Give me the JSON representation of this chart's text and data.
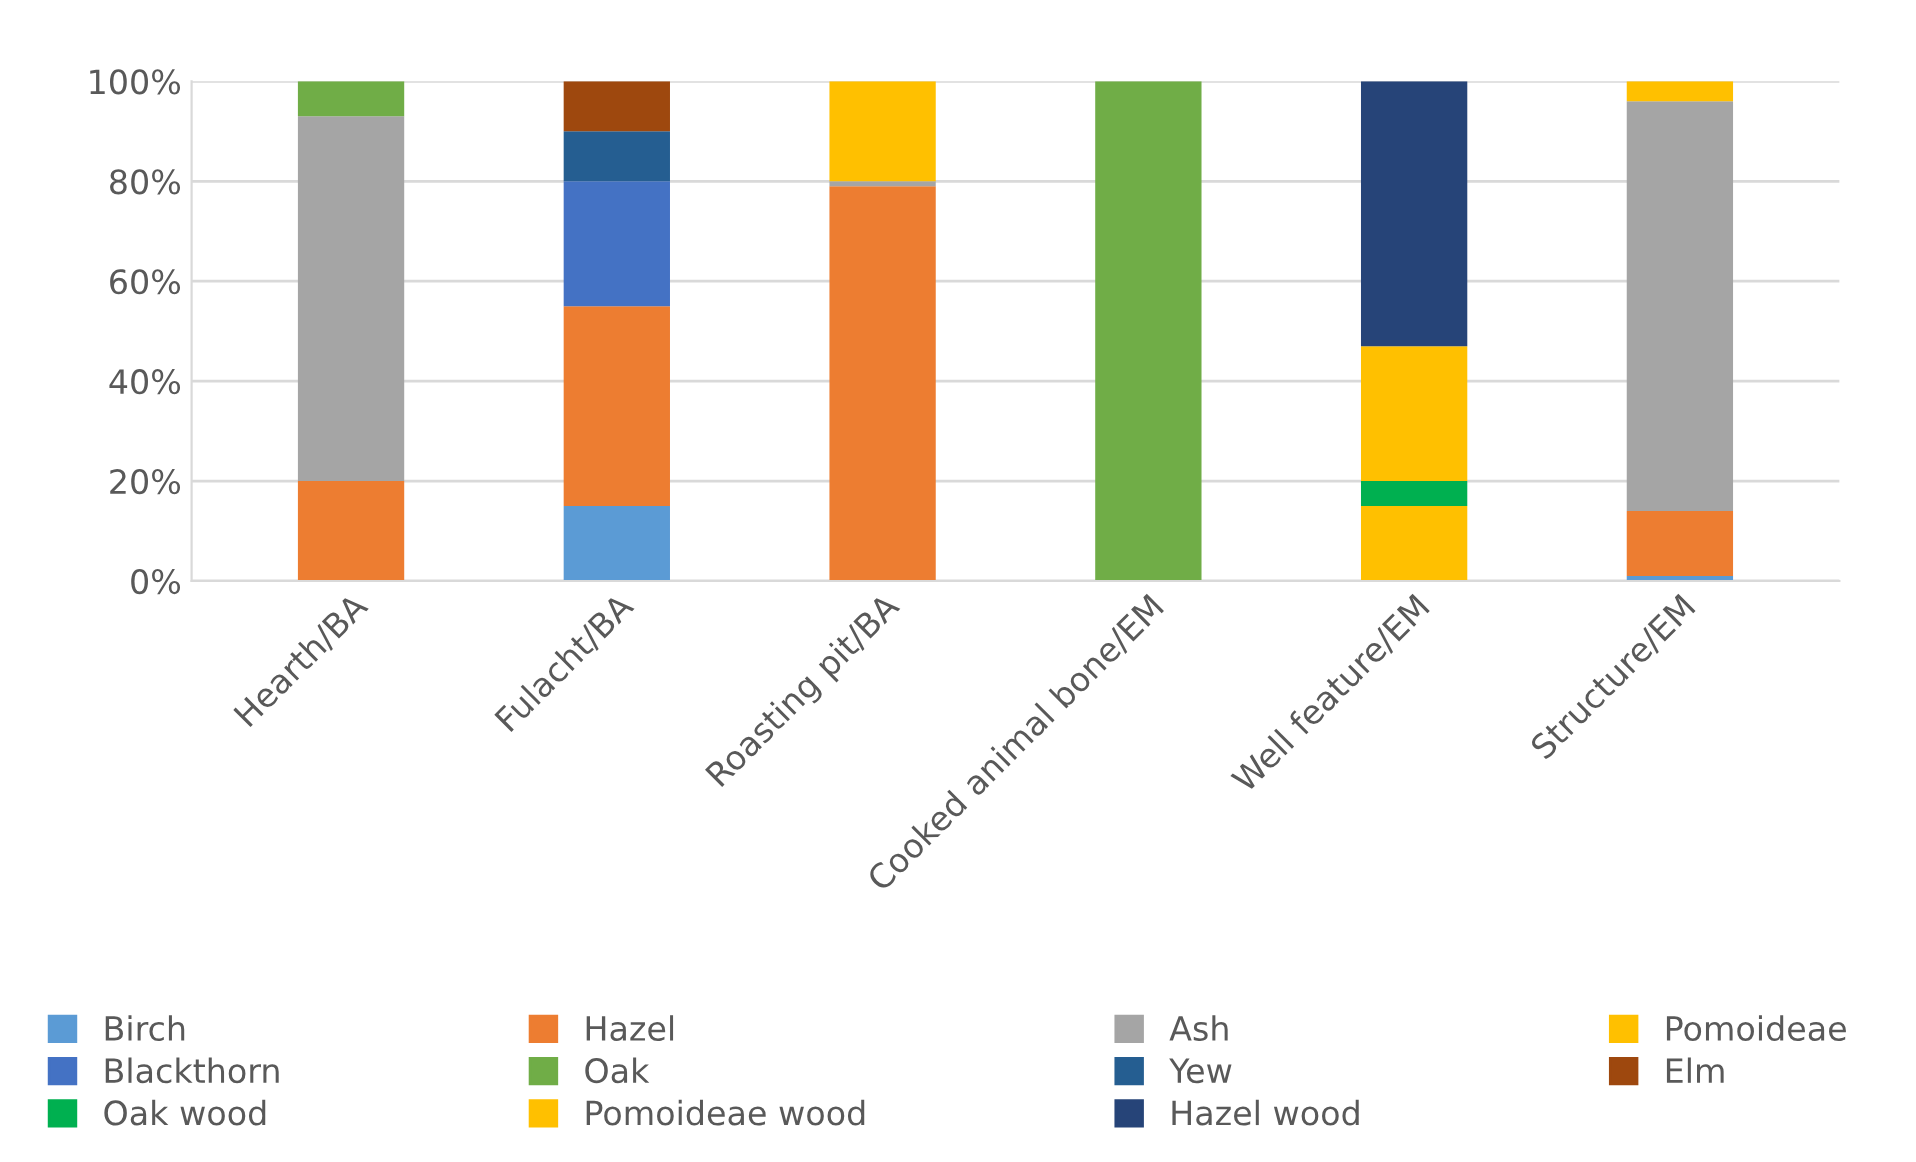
{
  "chart_data": {
    "type": "bar",
    "stacked": true,
    "categories": [
      "Hearth/BA",
      "Fulacht/BA",
      "Roasting pit/BA",
      "Cooked animal bone/EM",
      "Well feature/EM",
      "Structure/EM"
    ],
    "series": [
      {
        "name": "Birch",
        "color": "#5b9bd5",
        "values": [
          0,
          15,
          0,
          0,
          0,
          1
        ]
      },
      {
        "name": "Hazel",
        "color": "#ed7d31",
        "values": [
          20,
          40,
          79,
          0,
          0,
          13
        ]
      },
      {
        "name": "Ash",
        "color": "#a5a5a5",
        "values": [
          73,
          0,
          1,
          0,
          0,
          82
        ]
      },
      {
        "name": "Pomoideae",
        "color": "#ffc000",
        "values": [
          0,
          0,
          20,
          0,
          15,
          4
        ]
      },
      {
        "name": "Blackthorn",
        "color": "#4472c4",
        "values": [
          0,
          25,
          0,
          0,
          0,
          0
        ]
      },
      {
        "name": "Oak",
        "color": "#70ad47",
        "values": [
          7,
          0,
          0,
          100,
          0,
          0
        ]
      },
      {
        "name": "Yew",
        "color": "#255e91",
        "values": [
          0,
          10,
          0,
          0,
          0,
          0
        ]
      },
      {
        "name": "Elm",
        "color": "#9e480e",
        "values": [
          0,
          10,
          0,
          0,
          0,
          0
        ]
      },
      {
        "name": "Oak wood",
        "color": "#00b050",
        "values": [
          0,
          0,
          0,
          0,
          5,
          0
        ]
      },
      {
        "name": "Pomoideae wood",
        "color": "#ffc000",
        "values": [
          0,
          0,
          0,
          0,
          27,
          0
        ]
      },
      {
        "name": "Hazel wood",
        "color": "#264478",
        "values": [
          0,
          0,
          0,
          0,
          53,
          0
        ]
      }
    ],
    "ylim": [
      0,
      100
    ],
    "yticks": [
      {
        "value": 0,
        "label": "0%"
      },
      {
        "value": 20,
        "label": "20%"
      },
      {
        "value": 40,
        "label": "40%"
      },
      {
        "value": 60,
        "label": "60%"
      },
      {
        "value": 80,
        "label": "80%"
      },
      {
        "value": 100,
        "label": "100%"
      }
    ],
    "grid": "y",
    "legend": "bottom"
  }
}
